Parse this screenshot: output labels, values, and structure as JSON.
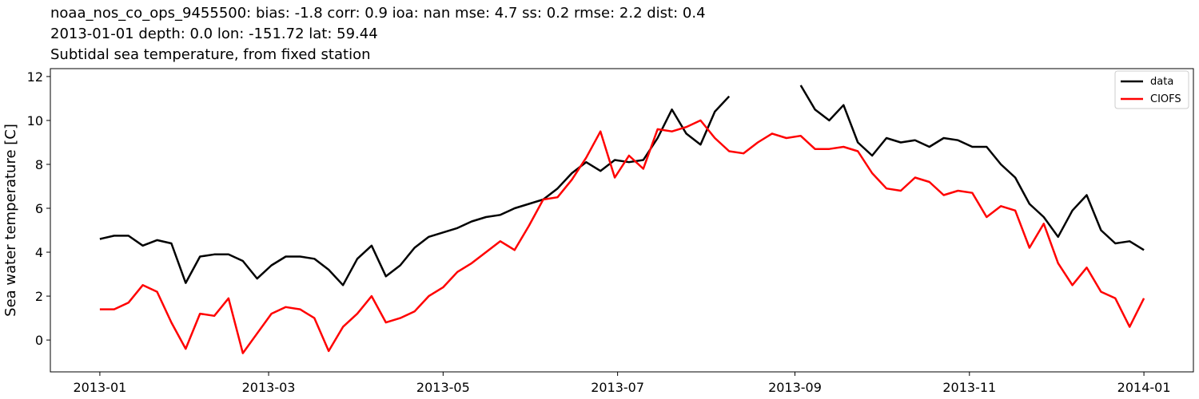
{
  "chart_data": {
    "type": "line",
    "title_lines": [
      "noaa_nos_co_ops_9455500: bias: -1.8  corr: 0.9  ioa: nan  mse: 4.7  ss: 0.2  rmse: 2.2  dist: 0.4",
      "2013-01-01 depth: 0.0 lon: -151.72 lat: 59.44",
      "Subtidal sea temperature, from fixed station"
    ],
    "ylabel": "Sea water temperature [C]",
    "x": [
      0,
      5,
      10,
      15,
      20,
      25,
      30,
      35,
      40,
      45,
      50,
      55,
      60,
      65,
      70,
      75,
      80,
      85,
      90,
      95,
      100,
      105,
      110,
      115,
      120,
      125,
      130,
      135,
      140,
      145,
      150,
      155,
      160,
      165,
      170,
      175,
      180,
      185,
      190,
      195,
      200,
      205,
      210,
      215,
      220,
      225,
      230,
      235,
      240,
      245,
      250,
      255,
      260,
      265,
      270,
      275,
      280,
      285,
      290,
      295,
      300,
      305,
      310,
      315,
      320,
      325,
      330,
      335,
      340,
      345,
      350,
      355,
      360,
      365
    ],
    "series": [
      {
        "name": "data",
        "color": "#000000",
        "values": [
          4.6,
          4.75,
          4.75,
          4.3,
          4.55,
          4.4,
          2.6,
          3.8,
          3.9,
          3.9,
          3.6,
          2.8,
          3.4,
          3.8,
          3.8,
          3.7,
          3.2,
          2.5,
          3.7,
          4.3,
          2.9,
          3.4,
          4.2,
          4.7,
          4.9,
          5.1,
          5.4,
          5.6,
          5.7,
          6.0,
          6.2,
          6.4,
          6.9,
          7.6,
          8.1,
          7.7,
          8.2,
          8.1,
          8.2,
          9.2,
          10.5,
          9.4,
          8.9,
          10.4,
          11.1,
          null,
          null,
          null,
          null,
          11.6,
          10.5,
          10.0,
          10.7,
          9.0,
          8.4,
          9.2,
          9.0,
          9.1,
          8.8,
          9.2,
          9.1,
          8.8,
          8.8,
          8.0,
          7.4,
          6.2,
          5.6,
          4.7,
          5.9,
          6.6,
          5.0,
          4.4,
          4.5,
          4.1
        ]
      },
      {
        "name": "CIOFS",
        "color": "#ff0000",
        "values": [
          1.4,
          1.4,
          1.7,
          2.5,
          2.2,
          0.8,
          -0.4,
          1.2,
          1.1,
          1.9,
          -0.6,
          0.3,
          1.2,
          1.5,
          1.4,
          1.0,
          -0.5,
          0.6,
          1.2,
          2.0,
          0.8,
          1.0,
          1.3,
          2.0,
          2.4,
          3.1,
          3.5,
          4.0,
          4.5,
          4.1,
          5.2,
          6.4,
          6.5,
          7.3,
          8.3,
          9.5,
          7.4,
          8.4,
          7.8,
          9.6,
          9.5,
          9.7,
          10.0,
          9.2,
          8.6,
          8.5,
          9.0,
          9.4,
          9.2,
          9.3,
          8.7,
          8.7,
          8.8,
          8.6,
          7.6,
          6.9,
          6.8,
          7.4,
          7.2,
          6.6,
          6.8,
          6.7,
          5.6,
          6.1,
          5.9,
          4.2,
          5.3,
          3.5,
          2.5,
          3.3,
          2.2,
          1.9,
          0.6,
          1.9
        ]
      }
    ],
    "xlim": [
      -17.3,
      382.3
    ],
    "xticks": [
      {
        "value": 0,
        "label": "2013-01"
      },
      {
        "value": 59,
        "label": "2013-03"
      },
      {
        "value": 120,
        "label": "2013-05"
      },
      {
        "value": 181,
        "label": "2013-07"
      },
      {
        "value": 243,
        "label": "2013-09"
      },
      {
        "value": 304,
        "label": "2013-11"
      },
      {
        "value": 365,
        "label": "2014-01"
      }
    ],
    "ylim": [
      -1.45,
      12.36
    ],
    "yticks": [
      0,
      2,
      4,
      6,
      8,
      10,
      12
    ],
    "grid": false,
    "legend": "upper right"
  }
}
